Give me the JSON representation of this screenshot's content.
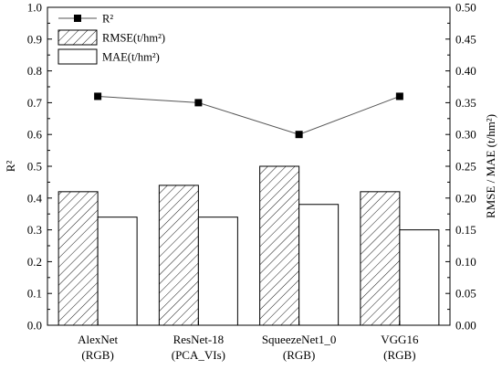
{
  "chart_data": {
    "type": "bar",
    "categories": [
      [
        "AlexNet",
        "(RGB)"
      ],
      [
        "ResNet-18",
        "(PCA_VIs)"
      ],
      [
        "SqueezeNet1_0",
        "(RGB)"
      ],
      [
        "VGG16",
        "(RGB)"
      ]
    ],
    "series": [
      {
        "name": "RMSE(t/hm²)",
        "kind": "bar",
        "axis": "right",
        "pattern": "hatch",
        "values": [
          0.21,
          0.22,
          0.25,
          0.21
        ]
      },
      {
        "name": "MAE(t/hm²)",
        "kind": "bar",
        "axis": "right",
        "pattern": "none",
        "values": [
          0.17,
          0.17,
          0.19,
          0.15
        ]
      },
      {
        "name": "R²",
        "kind": "line",
        "axis": "left",
        "marker": "square",
        "values": [
          0.72,
          0.7,
          0.6,
          0.72
        ]
      }
    ],
    "ylabel_left": "R²",
    "ylabel_right": "RMSE / MAE (t/hm²)",
    "ylim_left": [
      0.0,
      1.0
    ],
    "ylim_right": [
      0.0,
      0.5
    ],
    "yticks_left": [
      "0.0",
      "0.1",
      "0.2",
      "0.3",
      "0.4",
      "0.5",
      "0.6",
      "0.7",
      "0.8",
      "0.9",
      "1.0"
    ],
    "yticks_right": [
      "0.00",
      "0.05",
      "0.10",
      "0.15",
      "0.20",
      "0.25",
      "0.30",
      "0.35",
      "0.40",
      "0.45",
      "0.50"
    ],
    "legend_position": "top-left",
    "grid": false,
    "colors": {
      "line": "#555555",
      "marker": "#000000",
      "bar_stroke": "#000000",
      "bar_fill": "#ffffff"
    }
  }
}
